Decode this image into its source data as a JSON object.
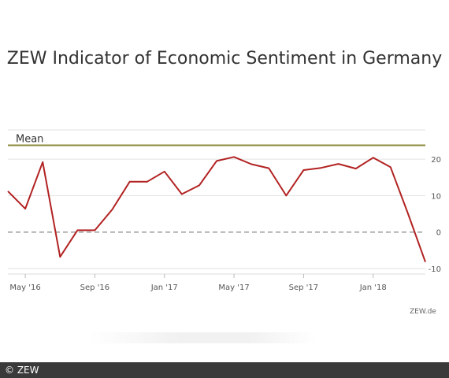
{
  "chart_data": {
    "type": "line",
    "title": "ZEW Indicator of Economic Sentiment in Germany",
    "x": [
      "Apr '16",
      "May '16",
      "Jun '16",
      "Jul '16",
      "Aug '16",
      "Sep '16",
      "Oct '16",
      "Nov '16",
      "Dec '16",
      "Jan '17",
      "Feb '17",
      "Mar '17",
      "Apr '17",
      "May '17",
      "Jun '17",
      "Jul '17",
      "Aug '17",
      "Sep '17",
      "Oct '17",
      "Nov '17",
      "Dec '17",
      "Jan '18",
      "Feb '18",
      "Mar '18",
      "Apr '18"
    ],
    "values": [
      11.2,
      6.4,
      19.2,
      -6.8,
      0.5,
      0.5,
      6.2,
      13.8,
      13.8,
      16.6,
      10.4,
      12.8,
      19.5,
      20.6,
      18.6,
      17.5,
      10.0,
      17.0,
      17.6,
      18.7,
      17.4,
      20.4,
      17.8,
      5.1,
      -8.2
    ],
    "series": [
      {
        "name": "",
        "color": "#b22222"
      }
    ],
    "mean": {
      "label": "Mean",
      "value": 23.8,
      "color": "#8b8b3a"
    },
    "zero_line": {
      "value": 0,
      "style": "dashed",
      "color": "#999999"
    },
    "x_tick_labels": [
      "May '16",
      "Sep '16",
      "Jan '17",
      "May '17",
      "Sep '17",
      "Jan '18"
    ],
    "x_tick_indices": [
      1,
      5,
      9,
      13,
      17,
      21
    ],
    "y_ticks": [
      20,
      10,
      0,
      -10
    ],
    "ylim": [
      -11.5,
      28
    ],
    "grid": true,
    "xlabel": "",
    "ylabel": ""
  },
  "source": "ZEW.de",
  "footer": "© ZEW"
}
